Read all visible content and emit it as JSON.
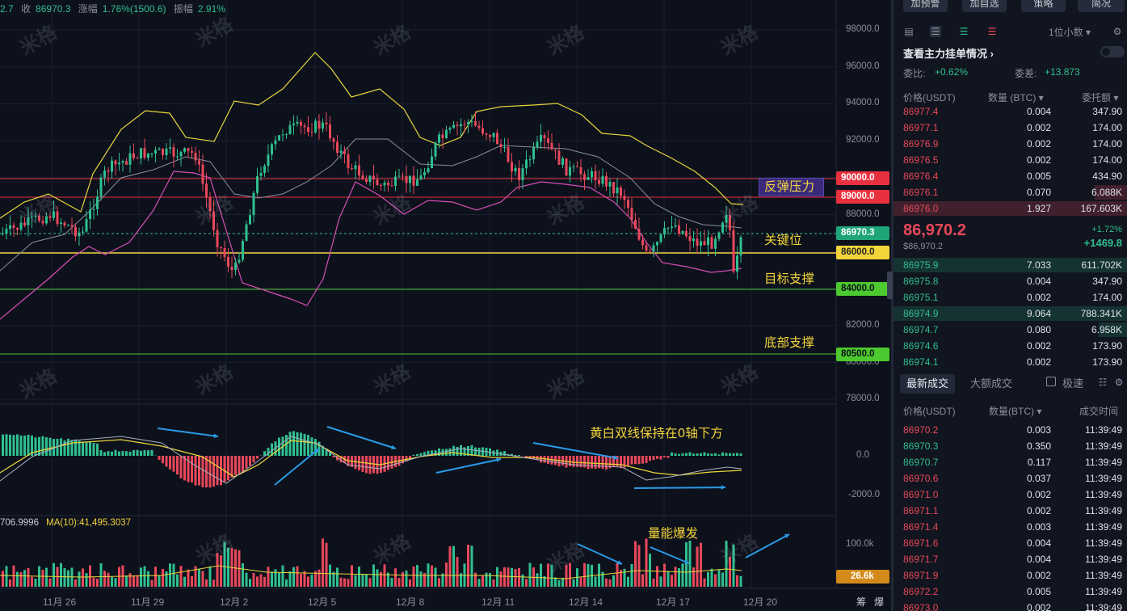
{
  "header": {
    "open_partial": "2.7",
    "close_label": "收",
    "close_value": "86970.3",
    "change_label": "涨幅",
    "change_value": "1.76%(1500.6)",
    "amp_label": "振幅",
    "amp_value": "2.91%"
  },
  "volume_indicator": {
    "ma5_partial": "706.9996",
    "ma10_label": "MA(10):41,495.3037"
  },
  "annotations": {
    "rebound_pressure": "反弹压力",
    "key_level": "关键位",
    "target_support": "目标支撑",
    "bottom_support": "底部支撑",
    "macd_note": "黄白双线保持在0轴下方",
    "volume_note": "量能爆发",
    "watermark": "米格"
  },
  "price_tags": {
    "p90000": "90000.0",
    "p89000": "89000.0",
    "current": "86970.3",
    "p86000": "86000.0",
    "p84000": "84000.0",
    "p80500": "80500.0",
    "vol_current": "26.6k"
  },
  "y_axis": [
    "98000.0",
    "96000.0",
    "94000.0",
    "92000.0",
    "88000.0",
    "82000.0",
    "80000.0",
    "78000.0"
  ],
  "macd_axis": [
    "0.0",
    "-2000.0"
  ],
  "vol_axis": [
    "100.0k"
  ],
  "x_axis": [
    "11月 26",
    "11月 29",
    "12月 2",
    "12月 5",
    "12月 8",
    "12月 11",
    "12月 14",
    "12月 17",
    "12月 20"
  ],
  "bottom_right_icons": [
    "筹",
    "爆"
  ],
  "colors": {
    "up": "#2fbf8f",
    "down": "#e8485a",
    "yellow": "#f2d43b",
    "purple_box": "#3b2a7a"
  },
  "panel": {
    "top_buttons": [
      "加预警",
      "加自选",
      "策略",
      "简况"
    ],
    "precision": "1位小数",
    "main_order_link": "查看主力挂单情况 ›",
    "ratio_label": "委比:",
    "ratio_value": "+0.62%",
    "diff_label": "委差:",
    "diff_value": "+13.873",
    "ob_headers": {
      "price": "价格(USDT)",
      "qty": "数量 (BTC)",
      "total": "委托额"
    },
    "asks": [
      {
        "p": "86977.4",
        "q": "0.004",
        "t": "347.90"
      },
      {
        "p": "86977.1",
        "q": "0.002",
        "t": "174.00"
      },
      {
        "p": "86976.9",
        "q": "0.002",
        "t": "174.00"
      },
      {
        "p": "86976.5",
        "q": "0.002",
        "t": "174.00"
      },
      {
        "p": "86976.4",
        "q": "0.005",
        "t": "434.90"
      },
      {
        "p": "86976.1",
        "q": "0.070",
        "t": "6.088K"
      },
      {
        "p": "86976.0",
        "q": "1.927",
        "t": "167.603K"
      }
    ],
    "mid_price": "86,970.2",
    "mid_sub": "$86,970.2",
    "mid_pct": "+1.72%",
    "mid_change": "+1469.8",
    "bids": [
      {
        "p": "86975.9",
        "q": "7.033",
        "t": "611.702K"
      },
      {
        "p": "86975.8",
        "q": "0.004",
        "t": "347.90"
      },
      {
        "p": "86975.1",
        "q": "0.002",
        "t": "174.00"
      },
      {
        "p": "86974.9",
        "q": "9.064",
        "t": "788.341K"
      },
      {
        "p": "86974.7",
        "q": "0.080",
        "t": "6.958K"
      },
      {
        "p": "86974.6",
        "q": "0.002",
        "t": "173.90"
      },
      {
        "p": "86974.1",
        "q": "0.002",
        "t": "173.90"
      }
    ],
    "tabs": {
      "latest": "最新成交",
      "large": "大额成交",
      "fast": "极速"
    },
    "trade_headers": {
      "price": "价格(USDT)",
      "qty": "数量(BTC)",
      "time": "成交时间"
    },
    "trades": [
      {
        "p": "86970.2",
        "q": "0.003",
        "tm": "11:39:49",
        "side": "down"
      },
      {
        "p": "86970.3",
        "q": "0.350",
        "tm": "11:39:49",
        "side": "up"
      },
      {
        "p": "86970.7",
        "q": "0.117",
        "tm": "11:39:49",
        "side": "up"
      },
      {
        "p": "86970.6",
        "q": "0.037",
        "tm": "11:39:49",
        "side": "down"
      },
      {
        "p": "86971.0",
        "q": "0.002",
        "tm": "11:39:49",
        "side": "down"
      },
      {
        "p": "86971.1",
        "q": "0.002",
        "tm": "11:39:49",
        "side": "down"
      },
      {
        "p": "86971.4",
        "q": "0.003",
        "tm": "11:39:49",
        "side": "down"
      },
      {
        "p": "86971.6",
        "q": "0.004",
        "tm": "11:39:49",
        "side": "down"
      },
      {
        "p": "86971.7",
        "q": "0.004",
        "tm": "11:39:49",
        "side": "down"
      },
      {
        "p": "86971.9",
        "q": "0.002",
        "tm": "11:39:49",
        "side": "down"
      },
      {
        "p": "86972.2",
        "q": "0.005",
        "tm": "11:39:49",
        "side": "down"
      },
      {
        "p": "86973.0",
        "q": "0.002",
        "tm": "11:39:49",
        "side": "down"
      }
    ]
  }
}
